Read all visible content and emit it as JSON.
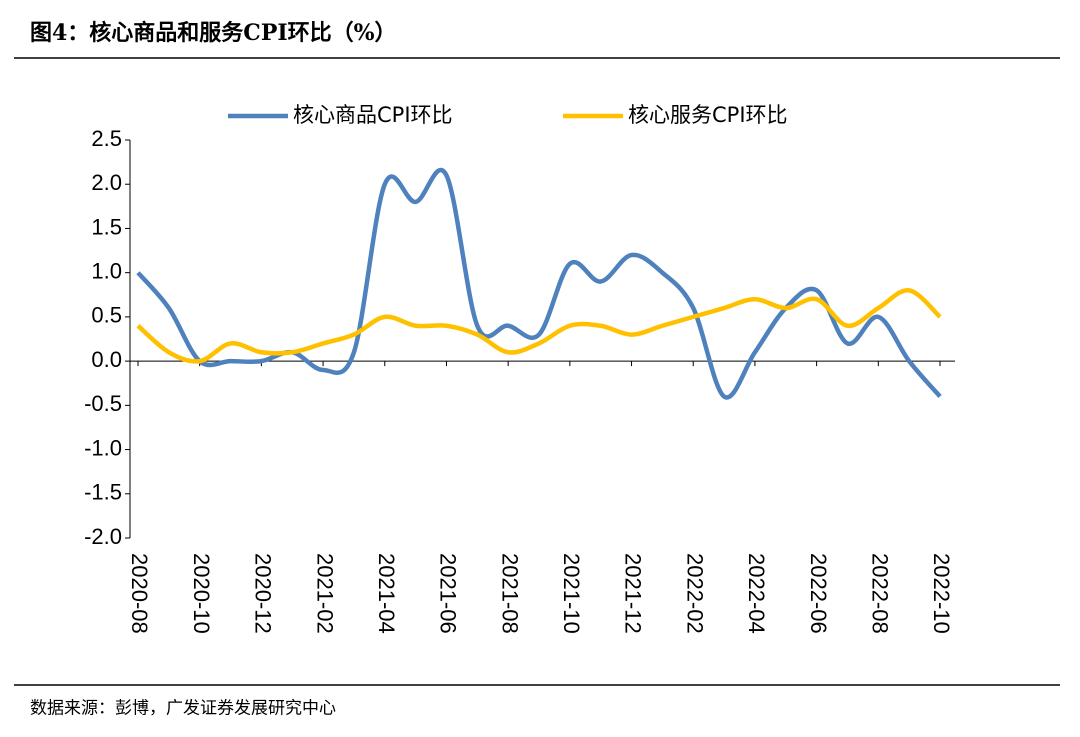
{
  "chart_data": {
    "type": "line",
    "title": "图4：核心商品和服务CPI环比（%）",
    "source": "数据来源：彭博，广发证券发展研究中心",
    "categories": [
      "2020-08",
      null,
      "2020-10",
      null,
      "2020-12",
      null,
      "2021-02",
      null,
      "2021-04",
      null,
      "2021-06",
      null,
      "2021-08",
      null,
      "2021-10",
      null,
      "2021-12",
      null,
      "2022-02",
      null,
      "2022-04",
      null,
      "2022-06",
      null,
      "2022-08",
      null,
      "2022-10"
    ],
    "series": [
      {
        "name": "核心商品CPI环比",
        "color": "#4f81bd",
        "values": [
          1.0,
          0.6,
          0.0,
          0.0,
          0.0,
          0.1,
          -0.1,
          0.1,
          2.0,
          1.8,
          2.1,
          0.4,
          0.4,
          0.3,
          1.1,
          0.9,
          1.2,
          1.0,
          0.6,
          -0.4,
          0.1,
          0.6,
          0.8,
          0.2,
          0.5,
          0.0,
          -0.4
        ]
      },
      {
        "name": "核心服务CPI环比",
        "color": "#ffc000",
        "values": [
          0.4,
          0.1,
          0.0,
          0.2,
          0.1,
          0.1,
          0.2,
          0.3,
          0.5,
          0.4,
          0.4,
          0.3,
          0.1,
          0.2,
          0.4,
          0.4,
          0.3,
          0.4,
          0.5,
          0.6,
          0.7,
          0.6,
          0.7,
          0.4,
          0.6,
          0.8,
          0.5
        ]
      }
    ],
    "ylim": [
      -2.0,
      2.5
    ],
    "yticks": [
      {
        "value": -2,
        "label": "-2.0"
      },
      -1.5,
      {
        "value": -1,
        "label": "-1.0"
      },
      -0.5,
      {
        "value": 0,
        "label": "0.0"
      },
      0.5,
      {
        "value": 1,
        "label": "1.0"
      },
      1.5,
      {
        "value": 2,
        "label": "2.0"
      },
      2.5
    ],
    "legend": "top"
  }
}
